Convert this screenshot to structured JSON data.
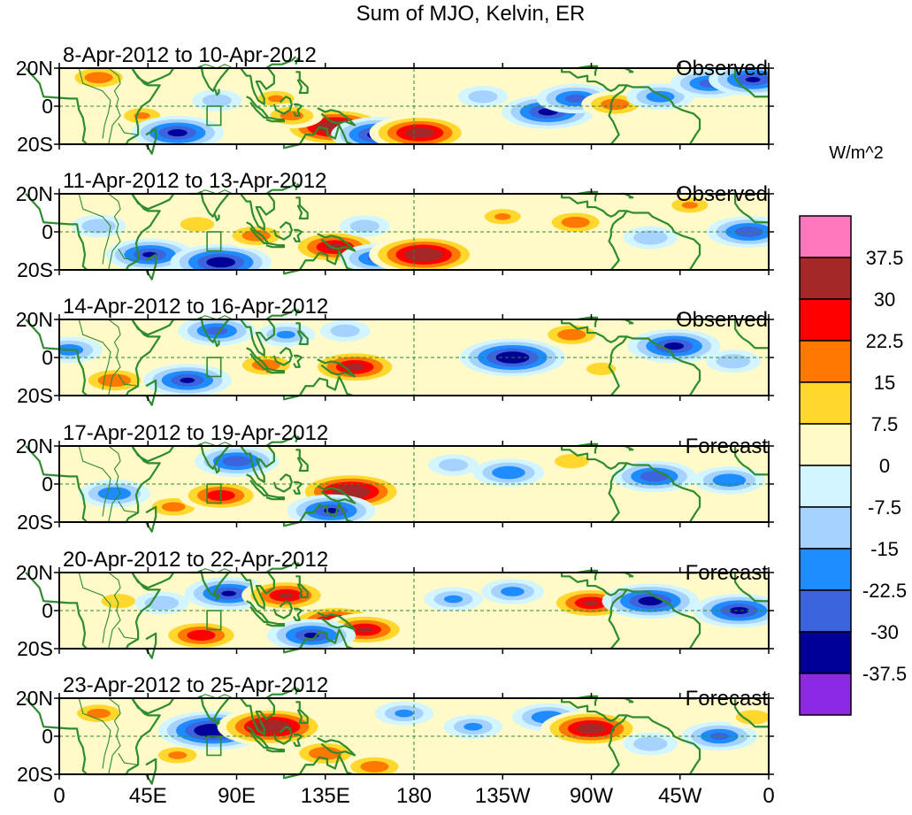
{
  "chart_data": {
    "type": "heatmap",
    "title": "Sum of MJO, Kelvin, ER",
    "x_axis": {
      "range_deg_east": [
        0,
        360
      ],
      "tick_values_deg_east": [
        0,
        45,
        90,
        135,
        180,
        225,
        270,
        315,
        360
      ],
      "tick_labels": [
        "0",
        "45E",
        "90E",
        "135E",
        "180",
        "135W",
        "90W",
        "45W",
        "0"
      ]
    },
    "y_axis": {
      "range_deg_lat": [
        -20,
        20
      ],
      "tick_values_deg_lat": [
        20,
        0,
        -20
      ],
      "tick_labels": [
        "20N",
        "0",
        "20S"
      ]
    },
    "colorbar": {
      "units": "W/m^2",
      "levels": [
        "37.5",
        "30",
        "22.5",
        "15",
        "7.5",
        "0",
        "-7.5",
        "-15",
        "-22.5",
        "-30",
        "-37.5"
      ],
      "colors": [
        "#ff78be",
        "#a52828",
        "#ff0000",
        "#ff7800",
        "#ffd72d",
        "#fffac8",
        "#d2f5ff",
        "#a5d2ff",
        "#1e8cff",
        "#3c64dc",
        "#000096",
        "#8c28e6"
      ]
    },
    "panels": [
      {
        "period": "8-Apr-2012 to 10-Apr-2012",
        "status": "Observed",
        "anomalies": [
          {
            "lon": 20,
            "lat": 15,
            "value": 20
          },
          {
            "lon": 42,
            "lat": -5,
            "value": 15
          },
          {
            "lon": 60,
            "lat": -14,
            "value": -32
          },
          {
            "lon": 80,
            "lat": 3,
            "value": -12
          },
          {
            "lon": 110,
            "lat": 4,
            "value": 15
          },
          {
            "lon": 140,
            "lat": -11,
            "value": 40
          },
          {
            "lon": 118,
            "lat": -5,
            "value": 18
          },
          {
            "lon": 163,
            "lat": -15,
            "value": -35
          },
          {
            "lon": 183,
            "lat": -14,
            "value": 36
          },
          {
            "lon": 215,
            "lat": 5,
            "value": -12
          },
          {
            "lon": 248,
            "lat": -3,
            "value": -32
          },
          {
            "lon": 262,
            "lat": 4,
            "value": -25
          },
          {
            "lon": 282,
            "lat": 1,
            "value": 20
          },
          {
            "lon": 305,
            "lat": 5,
            "value": -20
          },
          {
            "lon": 330,
            "lat": 12,
            "value": -25
          },
          {
            "lon": 352,
            "lat": 14,
            "value": -30
          }
        ]
      },
      {
        "period": "11-Apr-2012 to 13-Apr-2012",
        "status": "Observed",
        "anomalies": [
          {
            "lon": 20,
            "lat": 3,
            "value": -14
          },
          {
            "lon": 46,
            "lat": -12,
            "value": -30
          },
          {
            "lon": 70,
            "lat": 4,
            "value": 14
          },
          {
            "lon": 82,
            "lat": -16,
            "value": -36
          },
          {
            "lon": 100,
            "lat": -2,
            "value": 20
          },
          {
            "lon": 140,
            "lat": -8,
            "value": 32
          },
          {
            "lon": 155,
            "lat": 3,
            "value": -12
          },
          {
            "lon": 162,
            "lat": -14,
            "value": -25
          },
          {
            "lon": 185,
            "lat": -12,
            "value": 40
          },
          {
            "lon": 225,
            "lat": 8,
            "value": 15
          },
          {
            "lon": 262,
            "lat": 5,
            "value": 20
          },
          {
            "lon": 300,
            "lat": -3,
            "value": -14
          },
          {
            "lon": 320,
            "lat": 14,
            "value": 15
          },
          {
            "lon": 350,
            "lat": 0,
            "value": -28
          }
        ]
      },
      {
        "period": "14-Apr-2012 to 16-Apr-2012",
        "status": "Observed",
        "anomalies": [
          {
            "lon": 5,
            "lat": 4,
            "value": -20
          },
          {
            "lon": 28,
            "lat": -12,
            "value": 22
          },
          {
            "lon": 65,
            "lat": -12,
            "value": -30
          },
          {
            "lon": 80,
            "lat": 14,
            "value": -25
          },
          {
            "lon": 105,
            "lat": -4,
            "value": 20
          },
          {
            "lon": 115,
            "lat": 12,
            "value": -16
          },
          {
            "lon": 150,
            "lat": -5,
            "value": 32
          },
          {
            "lon": 145,
            "lat": 14,
            "value": -12
          },
          {
            "lon": 230,
            "lat": 0,
            "value": -38
          },
          {
            "lon": 260,
            "lat": 12,
            "value": 20
          },
          {
            "lon": 275,
            "lat": -6,
            "value": 12
          },
          {
            "lon": 312,
            "lat": 6,
            "value": -32
          },
          {
            "lon": 342,
            "lat": -2,
            "value": -14
          }
        ]
      },
      {
        "period": "17-Apr-2012 to 19-Apr-2012",
        "status": "Forecast",
        "anomalies": [
          {
            "lon": 28,
            "lat": -5,
            "value": -22
          },
          {
            "lon": 58,
            "lat": -12,
            "value": 18
          },
          {
            "lon": 82,
            "lat": -6,
            "value": 28
          },
          {
            "lon": 90,
            "lat": 12,
            "value": -28
          },
          {
            "lon": 148,
            "lat": -4,
            "value": 40
          },
          {
            "lon": 138,
            "lat": -14,
            "value": -30
          },
          {
            "lon": 200,
            "lat": 10,
            "value": -12
          },
          {
            "lon": 228,
            "lat": 6,
            "value": -22
          },
          {
            "lon": 260,
            "lat": 12,
            "value": 14
          },
          {
            "lon": 302,
            "lat": 4,
            "value": -28
          },
          {
            "lon": 340,
            "lat": 2,
            "value": -22
          }
        ]
      },
      {
        "period": "20-Apr-2012 to 22-Apr-2012",
        "status": "Forecast",
        "anomalies": [
          {
            "lon": 30,
            "lat": 5,
            "value": 14
          },
          {
            "lon": 52,
            "lat": 4,
            "value": -14
          },
          {
            "lon": 72,
            "lat": -13,
            "value": 28
          },
          {
            "lon": 86,
            "lat": 9,
            "value": -30
          },
          {
            "lon": 115,
            "lat": 8,
            "value": 30
          },
          {
            "lon": 140,
            "lat": -6,
            "value": 33
          },
          {
            "lon": 155,
            "lat": -10,
            "value": 30
          },
          {
            "lon": 128,
            "lat": -13,
            "value": -30
          },
          {
            "lon": 200,
            "lat": 6,
            "value": -16
          },
          {
            "lon": 230,
            "lat": 10,
            "value": -18
          },
          {
            "lon": 270,
            "lat": 4,
            "value": 30
          },
          {
            "lon": 300,
            "lat": 5,
            "value": -34
          },
          {
            "lon": 345,
            "lat": 0,
            "value": -32
          }
        ]
      },
      {
        "period": "23-Apr-2012 to 25-Apr-2012",
        "status": "Forecast",
        "anomalies": [
          {
            "lon": 20,
            "lat": 12,
            "value": 18
          },
          {
            "lon": 60,
            "lat": -10,
            "value": 16
          },
          {
            "lon": 78,
            "lat": 3,
            "value": -40
          },
          {
            "lon": 108,
            "lat": 5,
            "value": 40
          },
          {
            "lon": 135,
            "lat": -9,
            "value": 22
          },
          {
            "lon": 160,
            "lat": -16,
            "value": 20
          },
          {
            "lon": 175,
            "lat": 12,
            "value": -16
          },
          {
            "lon": 210,
            "lat": 5,
            "value": -16
          },
          {
            "lon": 248,
            "lat": 10,
            "value": -22
          },
          {
            "lon": 270,
            "lat": 4,
            "value": 36
          },
          {
            "lon": 300,
            "lat": -4,
            "value": -14
          },
          {
            "lon": 335,
            "lat": 0,
            "value": -24
          },
          {
            "lon": 352,
            "lat": 10,
            "value": 14
          }
        ]
      }
    ]
  }
}
